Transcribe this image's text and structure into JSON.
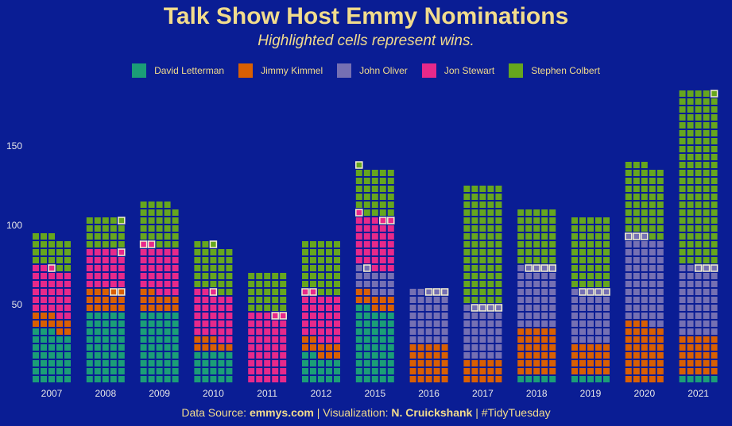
{
  "chart_data": {
    "type": "waffle-stacked-bar",
    "title": "Talk Show Host Emmy Nominations",
    "subtitle": "Highlighted cells represent wins.",
    "y_ticks": [
      50,
      100,
      150
    ],
    "ylim": [
      0,
      185
    ],
    "categories": [
      "2007",
      "2008",
      "2009",
      "2010",
      "2011",
      "2012",
      "2015",
      "2016",
      "2017",
      "2018",
      "2019",
      "2020",
      "2021"
    ],
    "series": [
      {
        "name": "David Letterman",
        "color": "#1b9e77",
        "values": [
          33,
          45,
          45,
          20,
          0,
          17,
          47,
          0,
          0,
          5,
          5,
          0,
          5
        ]
      },
      {
        "name": "Jimmy Kimmel",
        "color": "#d95f02",
        "values": [
          10,
          15,
          12,
          8,
          0,
          10,
          10,
          25,
          15,
          30,
          20,
          38,
          25
        ]
      },
      {
        "name": "John Oliver",
        "color": "#7570b3",
        "values": [
          0,
          0,
          0,
          0,
          0,
          0,
          15,
          35,
          35,
          40,
          35,
          55,
          45
        ]
      },
      {
        "name": "Jon Stewart",
        "color": "#e7298a",
        "values": [
          30,
          25,
          30,
          30,
          45,
          30,
          34,
          0,
          0,
          0,
          0,
          0,
          0
        ]
      },
      {
        "name": "Stephen Colbert",
        "color": "#66a61e",
        "values": [
          20,
          20,
          27,
          30,
          25,
          33,
          30,
          0,
          75,
          35,
          45,
          45,
          110
        ]
      }
    ],
    "wins": [
      {
        "year": "2007",
        "series": "Jon Stewart",
        "count": 1
      },
      {
        "year": "2008",
        "series": "Jimmy Kimmel",
        "count": 2
      },
      {
        "year": "2008",
        "series": "Jon Stewart",
        "count": 1
      },
      {
        "year": "2008",
        "series": "Stephen Colbert",
        "count": 1
      },
      {
        "year": "2009",
        "series": "Jon Stewart",
        "count": 2
      },
      {
        "year": "2010",
        "series": "Jon Stewart",
        "count": 1
      },
      {
        "year": "2010",
        "series": "Stephen Colbert",
        "count": 1
      },
      {
        "year": "2011",
        "series": "Jon Stewart",
        "count": 2
      },
      {
        "year": "2012",
        "series": "Jon Stewart",
        "count": 2
      },
      {
        "year": "2015",
        "series": "John Oliver",
        "count": 1
      },
      {
        "year": "2015",
        "series": "Jon Stewart",
        "count": 3
      },
      {
        "year": "2015",
        "series": "Stephen Colbert",
        "count": 1
      },
      {
        "year": "2016",
        "series": "John Oliver",
        "count": 3
      },
      {
        "year": "2017",
        "series": "John Oliver",
        "count": 4
      },
      {
        "year": "2018",
        "series": "John Oliver",
        "count": 4
      },
      {
        "year": "2019",
        "series": "John Oliver",
        "count": 4
      },
      {
        "year": "2020",
        "series": "John Oliver",
        "count": 3
      },
      {
        "year": "2021",
        "series": "John Oliver",
        "count": 3
      },
      {
        "year": "2021",
        "series": "Stephen Colbert",
        "count": 1
      }
    ],
    "colors": {
      "background": "#0a1d94",
      "text": "#f2dc8c",
      "axis_text": "#e8e8e8",
      "win_border": "#f5f0d0"
    }
  },
  "caption": {
    "prefix": "Data Source: ",
    "source": "emmys.com",
    "middle": " | Visualization: ",
    "author": "N. Cruickshank",
    "suffix": " | #TidyTuesday"
  }
}
